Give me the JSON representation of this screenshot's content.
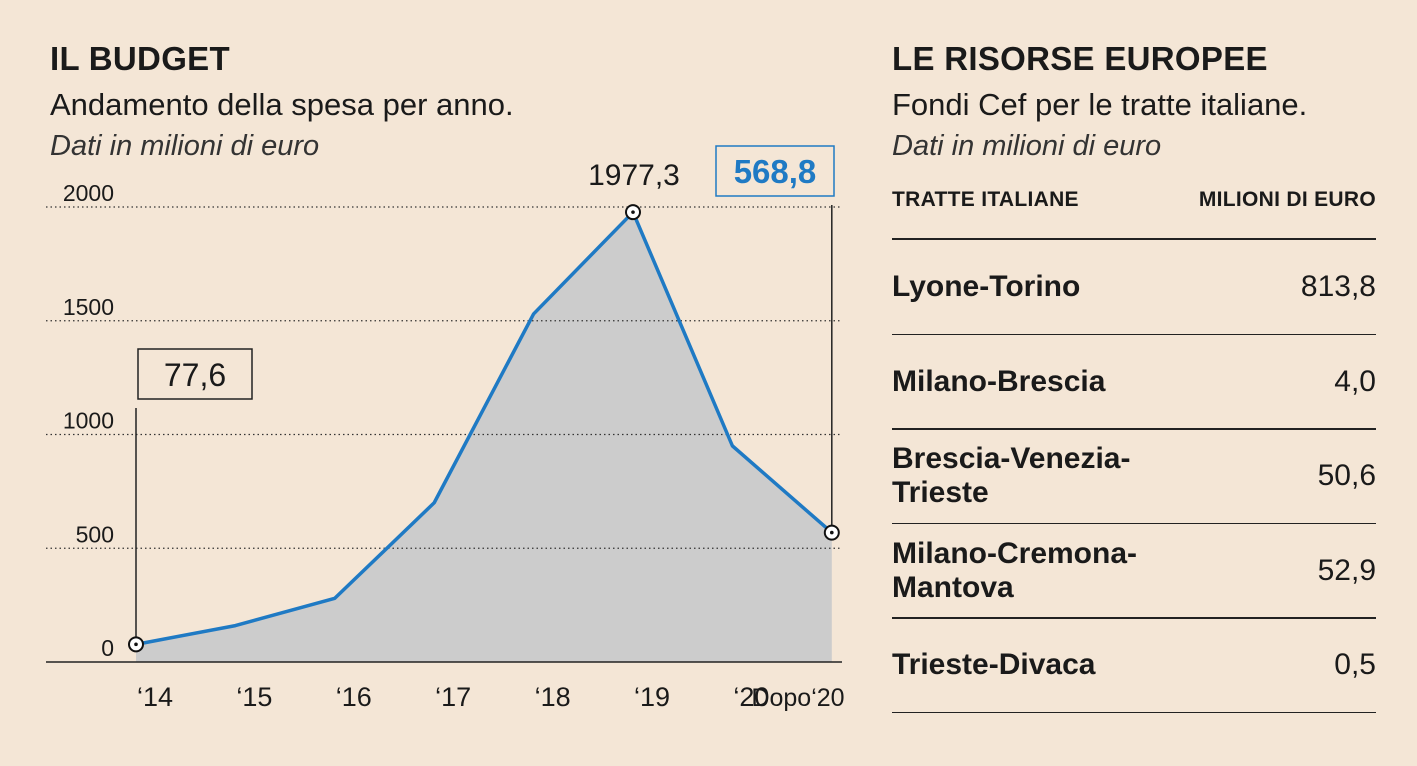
{
  "budget": {
    "title": "IL BUDGET",
    "subtitle": "Andamento della spesa per anno.",
    "note": "Dati in milioni di euro"
  },
  "risorse": {
    "title": "LE RISORSE  EUROPEE",
    "subtitle": "Fondi Cef per le tratte italiane.",
    "note": "Dati in milioni di euro",
    "col_name": "TRATTE ITALIANE",
    "col_value": "MILIONI DI EURO",
    "rows": [
      {
        "name": "Lyone-Torino",
        "value": "813,8"
      },
      {
        "name": "Milano-Brescia",
        "value": "4,0"
      },
      {
        "name": "Brescia-Venezia-\nTrieste",
        "value": "50,6"
      },
      {
        "name": "Milano-Cremona-\nMantova",
        "value": "52,9"
      },
      {
        "name": "Trieste-Divaca",
        "value": "0,5"
      }
    ]
  },
  "chart_data": {
    "type": "area",
    "categories": [
      "‘14",
      "‘15",
      "‘16",
      "‘17",
      "‘18",
      "‘19",
      "‘20",
      "Dopo‘20"
    ],
    "values": [
      77.6,
      160,
      280,
      700,
      1530,
      1977.3,
      950,
      568.8
    ],
    "ylim": [
      0,
      2000
    ],
    "yticks": [
      0,
      500,
      1000,
      1500,
      2000
    ],
    "grid": true,
    "line_color": "#1f7ac4",
    "fill_color": "#cccccc",
    "annotations": [
      {
        "index": 0,
        "label": "77,6",
        "style": "box"
      },
      {
        "index": 5,
        "label": "1977,3",
        "style": "plain"
      },
      {
        "index": 7,
        "label": "568,8",
        "style": "highlight"
      }
    ]
  }
}
